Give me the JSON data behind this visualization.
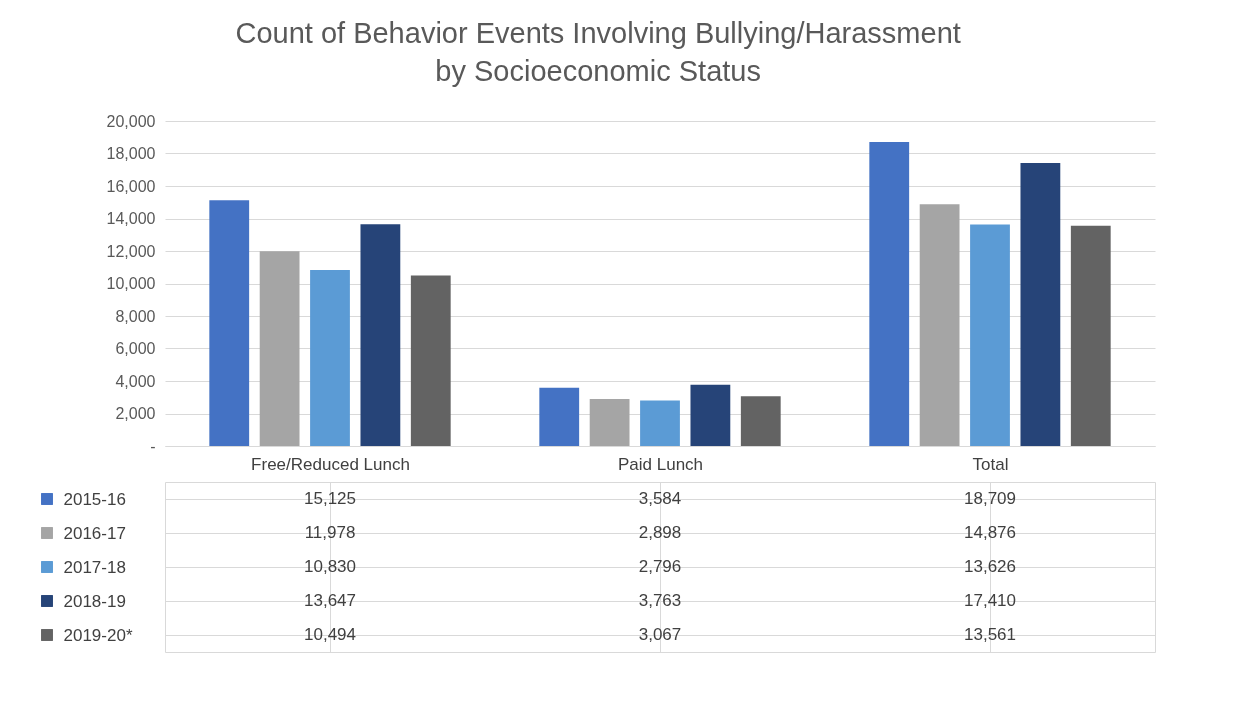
{
  "chart_data": {
    "type": "bar",
    "title": "Count of Behavior Events Involving Bullying/Harassment\nby Socioeconomic Status",
    "categories": [
      "Free/Reduced Lunch",
      "Paid Lunch",
      "Total"
    ],
    "series": [
      {
        "name": "2015-16",
        "color": "#4472c4",
        "values": [
          15125,
          3584,
          18709
        ],
        "value_labels": [
          "15,125",
          "3,584",
          "18,709"
        ]
      },
      {
        "name": "2016-17",
        "color": "#a5a5a5",
        "values": [
          11978,
          2898,
          14876
        ],
        "value_labels": [
          "11,978",
          "2,898",
          "14,876"
        ]
      },
      {
        "name": "2017-18",
        "color": "#5b9bd5",
        "values": [
          10830,
          2796,
          13626
        ],
        "value_labels": [
          "10,830",
          "2,796",
          "13,626"
        ]
      },
      {
        "name": "2018-19",
        "color": "#264478",
        "values": [
          13647,
          3763,
          17410
        ],
        "value_labels": [
          "13,647",
          "3,763",
          "17,410"
        ]
      },
      {
        "name": "2019-20*",
        "color": "#636363",
        "values": [
          10494,
          3067,
          13561
        ],
        "value_labels": [
          "10,494",
          "3,067",
          "13,561"
        ]
      }
    ],
    "ylim": [
      0,
      20000
    ],
    "yticks": [
      {
        "value": 0,
        "label": "-"
      },
      {
        "value": 2000,
        "label": "2,000"
      },
      {
        "value": 4000,
        "label": "4,000"
      },
      {
        "value": 6000,
        "label": "6,000"
      },
      {
        "value": 8000,
        "label": "8,000"
      },
      {
        "value": 10000,
        "label": "10,000"
      },
      {
        "value": 12000,
        "label": "12,000"
      },
      {
        "value": 14000,
        "label": "14,000"
      },
      {
        "value": 16000,
        "label": "16,000"
      },
      {
        "value": 18000,
        "label": "18,000"
      },
      {
        "value": 20000,
        "label": "20,000"
      }
    ],
    "grid": "y",
    "legend": "bottom"
  }
}
